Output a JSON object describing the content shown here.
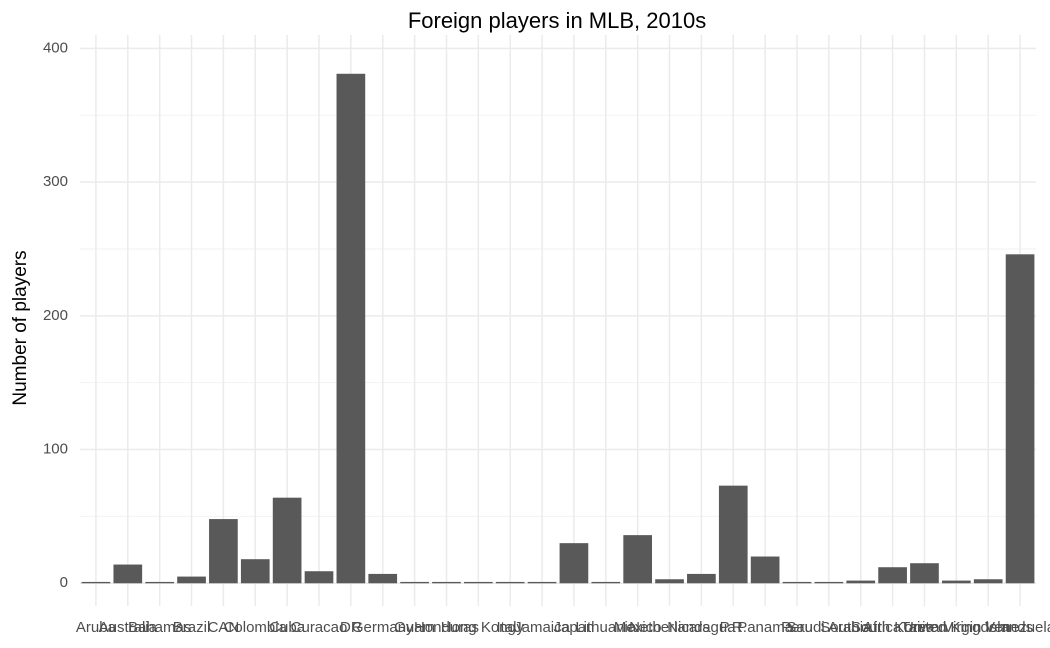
{
  "chart_data": {
    "type": "bar",
    "title": "Foreign players in MLB, 2010s",
    "y_label": "Number of players",
    "categories": [
      "Aruba",
      "Australia",
      "Bahamas",
      "Brazil",
      "CAN",
      "Colombia",
      "Cuba",
      "Curacao",
      "DR",
      "Germany",
      "Guam",
      "Honduras",
      "Hong Kong",
      "Italy",
      "Jamaica",
      "Japan",
      "Lithuania",
      "Mexico",
      "Netherlands",
      "Nicaragua",
      "P.R.",
      "Panama",
      "Peru",
      "Saudi Arabia",
      "South Africa",
      "South Korea",
      "Taiwan",
      "United Kingdom",
      "Virgin Islands",
      "Venezuela"
    ],
    "values": [
      1,
      14,
      1,
      5,
      48,
      18,
      64,
      9,
      381,
      7,
      1,
      1,
      1,
      1,
      1,
      30,
      1,
      36,
      3,
      7,
      73,
      20,
      1,
      1,
      2,
      12,
      15,
      2,
      3,
      246
    ],
    "color": "#595959",
    "ylim": [
      -17,
      410
    ],
    "yticks": [
      0,
      100,
      200,
      300,
      400
    ],
    "grid": true
  }
}
